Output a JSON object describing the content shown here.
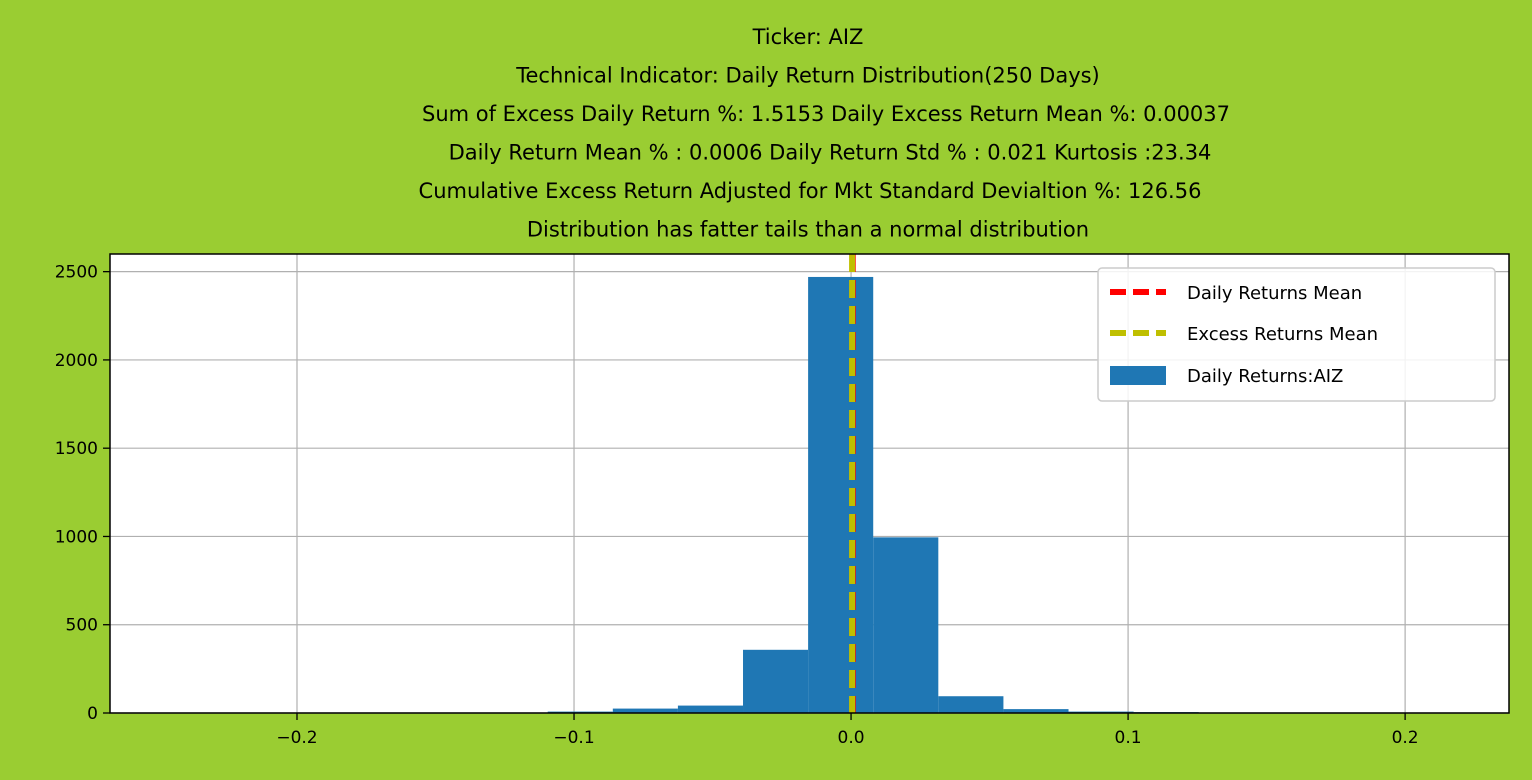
{
  "chart_data": {
    "type": "bar",
    "title_lines": [
      "Ticker: AIZ",
      "Technical Indicator: Daily Return Distribution(250 Days)",
      "Sum of Excess Daily Return %: 1.5153   Daily Excess Return Mean %: 0.00037",
      "Daily Return Mean % : 0.0006    Daily Return Std % : 0.021  Kurtosis :23.34",
      "Cumulative Excess Return Adjusted for Mkt Standard Devialtion %: 126.56",
      "Distribution has fatter tails than a normal distribution"
    ],
    "xlim": [
      -0.2675,
      0.2375
    ],
    "ylim": [
      0,
      2600
    ],
    "grid": true,
    "legend_position": "top-right",
    "x_ticks": [
      {
        "value": -0.2,
        "label": "−0.2"
      },
      {
        "value": -0.1,
        "label": "−0.1"
      },
      {
        "value": 0.0,
        "label": "0.0"
      },
      {
        "value": 0.1,
        "label": "0.1"
      },
      {
        "value": 0.2,
        "label": "0.2"
      }
    ],
    "y_ticks": [
      {
        "value": 0,
        "label": "0"
      },
      {
        "value": 500,
        "label": "500"
      },
      {
        "value": 1000,
        "label": "1000"
      },
      {
        "value": 1500,
        "label": "1500"
      },
      {
        "value": 2000,
        "label": "2000"
      },
      {
        "value": 2500,
        "label": "2500"
      }
    ],
    "histogram": {
      "name": "Daily Returns:AIZ",
      "color": "#1f77b4",
      "bins": [
        {
          "start": -0.1095,
          "end": -0.086,
          "count": 8
        },
        {
          "start": -0.086,
          "end": -0.0625,
          "count": 25
        },
        {
          "start": -0.0625,
          "end": -0.039,
          "count": 42
        },
        {
          "start": -0.039,
          "end": -0.0155,
          "count": 358
        },
        {
          "start": -0.0155,
          "end": 0.008,
          "count": 2470
        },
        {
          "start": 0.008,
          "end": 0.0315,
          "count": 995
        },
        {
          "start": 0.0315,
          "end": 0.055,
          "count": 95
        },
        {
          "start": 0.055,
          "end": 0.0785,
          "count": 22
        },
        {
          "start": 0.0785,
          "end": 0.102,
          "count": 8
        },
        {
          "start": 0.102,
          "end": 0.1255,
          "count": 5
        }
      ]
    },
    "mean_lines": [
      {
        "name": "Daily Returns Mean",
        "value": 0.0006,
        "color": "#ff0000"
      },
      {
        "name": "Excess Returns Mean",
        "value": 0.00037,
        "color": "#bfbf00"
      }
    ]
  }
}
